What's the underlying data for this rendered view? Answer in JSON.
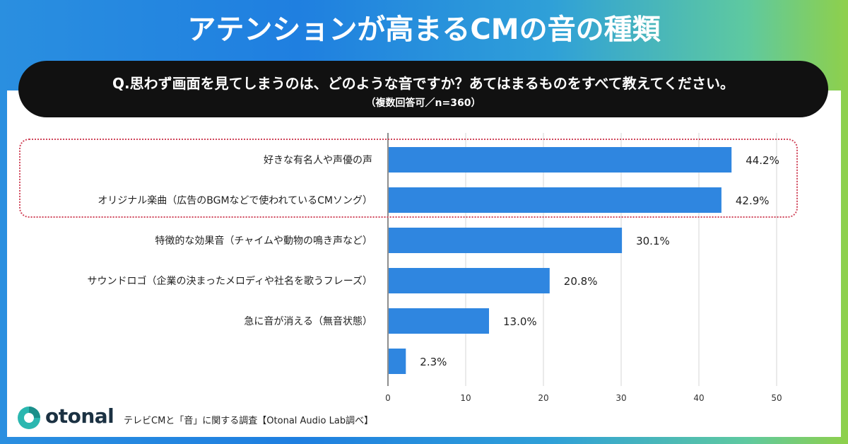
{
  "header": {
    "title": "アテンションが高まるCMの音の種類"
  },
  "question": {
    "text": "Q.思わず画面を見てしまうのは、どのような音ですか？あてはまるものをすべて教えてください。",
    "sub": "（複数回答可／n=360）"
  },
  "chart_data": {
    "type": "bar",
    "orientation": "horizontal",
    "categories": [
      "好きな有名人や声優の声",
      "オリジナル楽曲（広告のBGMなどで使われているCMソング）",
      "特徴的な効果音（チャイムや動物の鳴き声など）",
      "サウンドロゴ（企業の決まったメロディや社名を歌うフレーズ）",
      "急に音が消える（無音状態）",
      ""
    ],
    "values": [
      44.2,
      42.9,
      30.1,
      20.8,
      13.0,
      2.3
    ],
    "value_labels": [
      "44.2%",
      "42.9%",
      "30.1%",
      "20.8%",
      "13.0%",
      "2.3%"
    ],
    "xlim": [
      0,
      50
    ],
    "ticks": [
      0,
      10,
      20,
      30,
      40,
      50
    ],
    "highlighted_categories": [
      0,
      1
    ],
    "grid": true,
    "bar_color": "#2f86e0",
    "highlight_color": "#d0455a"
  },
  "footer": {
    "logo": "otonal",
    "logo_icon": "otonal-logo-icon",
    "credit": "テレビCMと「音」に関する調査【Otonal Audio Lab調べ】"
  }
}
